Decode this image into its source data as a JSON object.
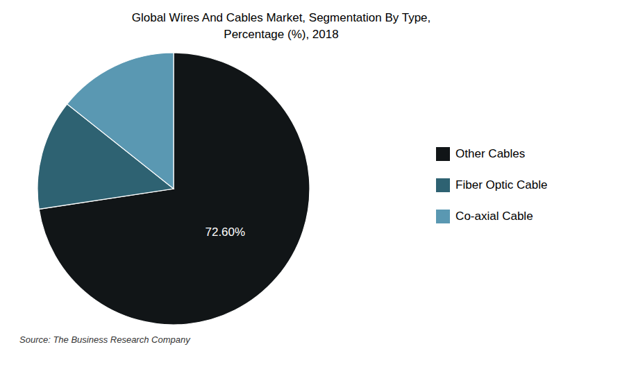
{
  "chart_data": {
    "type": "pie",
    "title": "Global Wires And Cables Market, Segmentation By Type,\nPercentage (%), 2018",
    "categories": [
      "Other Cables",
      "Fiber Optic Cable",
      "Co-axial Cable"
    ],
    "values": [
      72.6,
      13.1,
      14.3
    ],
    "colors": [
      "#111517",
      "#2e6272",
      "#5a98b2"
    ],
    "value_labels": [
      "72.60%",
      null,
      null
    ],
    "source": "Source: The Business Research Company",
    "legend": "right"
  }
}
